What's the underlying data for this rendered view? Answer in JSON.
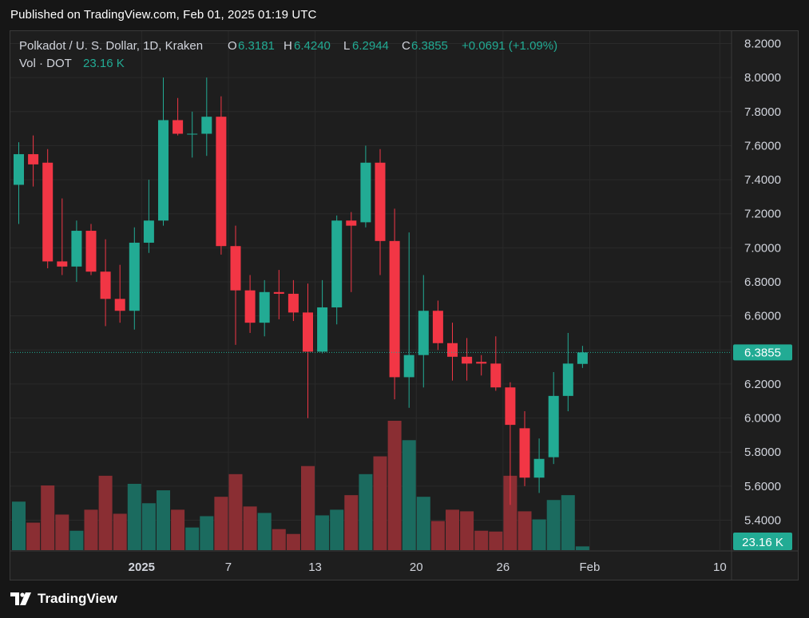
{
  "header": {
    "published": "Published on TradingView.com, Feb 01, 2025 01:19 UTC"
  },
  "legend": {
    "symbol": "Polkadot / U. S. Dollar, 1D, Kraken",
    "o_label": "O",
    "o_value": "6.3181",
    "h_label": "H",
    "h_value": "6.4240",
    "l_label": "L",
    "l_value": "6.2944",
    "c_label": "C",
    "c_value": "6.3855",
    "change": "+0.0691 (+1.09%)",
    "vol_label": "Vol · DOT",
    "vol_value": "23.16 K"
  },
  "footer": {
    "brand": "TradingView"
  },
  "colors": {
    "up": "#22ab94",
    "down": "#f23645",
    "up_vol": "#1b6b5f",
    "down_vol": "#8a2e33",
    "text": "#d1d4dc"
  },
  "chart_data": {
    "type": "candlestick",
    "y_ticks": [
      "8.2000",
      "8.0000",
      "7.8000",
      "7.6000",
      "7.4000",
      "7.2000",
      "7.0000",
      "6.8000",
      "6.6000",
      "6.4000",
      "6.2000",
      "6.0000",
      "5.8000",
      "5.6000",
      "5.4000"
    ],
    "ylim": [
      5.35,
      8.25
    ],
    "x_ticks": [
      {
        "label": "2025",
        "index": 8.5
      },
      {
        "label": "7",
        "index": 14.5
      },
      {
        "label": "13",
        "index": 20.5
      },
      {
        "label": "20",
        "index": 27.5
      },
      {
        "label": "26",
        "index": 33.5
      },
      {
        "label": "Feb",
        "index": 39.5
      },
      {
        "label": "10",
        "index": 48.5
      }
    ],
    "last_price": "6.3855",
    "last_volume": "23.16 K",
    "candles": [
      {
        "o": 7.37,
        "h": 7.62,
        "l": 7.14,
        "c": 7.55
      },
      {
        "o": 7.55,
        "h": 7.66,
        "l": 7.36,
        "c": 7.49
      },
      {
        "o": 7.5,
        "h": 7.58,
        "l": 6.88,
        "c": 6.92
      },
      {
        "o": 6.92,
        "h": 7.29,
        "l": 6.84,
        "c": 6.89
      },
      {
        "o": 6.89,
        "h": 7.16,
        "l": 6.8,
        "c": 7.1
      },
      {
        "o": 7.1,
        "h": 7.14,
        "l": 6.84,
        "c": 6.86
      },
      {
        "o": 6.86,
        "h": 7.05,
        "l": 6.54,
        "c": 6.7
      },
      {
        "o": 6.7,
        "h": 6.9,
        "l": 6.56,
        "c": 6.63
      },
      {
        "o": 6.63,
        "h": 7.12,
        "l": 6.52,
        "c": 7.03
      },
      {
        "o": 7.03,
        "h": 7.4,
        "l": 6.97,
        "c": 7.16
      },
      {
        "o": 7.16,
        "h": 8.0,
        "l": 7.13,
        "c": 7.75
      },
      {
        "o": 7.75,
        "h": 7.88,
        "l": 7.66,
        "c": 7.67
      },
      {
        "o": 7.67,
        "h": 7.8,
        "l": 7.53,
        "c": 7.67
      },
      {
        "o": 7.67,
        "h": 8.0,
        "l": 7.54,
        "c": 7.77
      },
      {
        "o": 7.77,
        "h": 7.89,
        "l": 6.96,
        "c": 7.01
      },
      {
        "o": 7.01,
        "h": 7.13,
        "l": 6.43,
        "c": 6.75
      },
      {
        "o": 6.75,
        "h": 6.84,
        "l": 6.5,
        "c": 6.56
      },
      {
        "o": 6.56,
        "h": 6.81,
        "l": 6.48,
        "c": 6.74
      },
      {
        "o": 6.74,
        "h": 6.87,
        "l": 6.58,
        "c": 6.73
      },
      {
        "o": 6.73,
        "h": 6.81,
        "l": 6.57,
        "c": 6.62
      },
      {
        "o": 6.62,
        "h": 6.79,
        "l": 6.0,
        "c": 6.39
      },
      {
        "o": 6.39,
        "h": 6.81,
        "l": 6.38,
        "c": 6.65
      },
      {
        "o": 6.65,
        "h": 7.19,
        "l": 6.55,
        "c": 7.16
      },
      {
        "o": 7.16,
        "h": 7.21,
        "l": 6.74,
        "c": 7.13
      },
      {
        "o": 7.15,
        "h": 7.6,
        "l": 7.12,
        "c": 7.5
      },
      {
        "o": 7.5,
        "h": 7.58,
        "l": 6.84,
        "c": 7.04
      },
      {
        "o": 7.04,
        "h": 7.23,
        "l": 6.11,
        "c": 6.24
      },
      {
        "o": 6.24,
        "h": 7.09,
        "l": 6.06,
        "c": 6.37
      },
      {
        "o": 6.37,
        "h": 6.84,
        "l": 6.18,
        "c": 6.63
      },
      {
        "o": 6.63,
        "h": 6.69,
        "l": 6.4,
        "c": 6.44
      },
      {
        "o": 6.44,
        "h": 6.56,
        "l": 6.22,
        "c": 6.36
      },
      {
        "o": 6.36,
        "h": 6.47,
        "l": 6.22,
        "c": 6.32
      },
      {
        "o": 6.33,
        "h": 6.37,
        "l": 6.25,
        "c": 6.32
      },
      {
        "o": 6.32,
        "h": 6.48,
        "l": 6.16,
        "c": 6.18
      },
      {
        "o": 6.18,
        "h": 6.21,
        "l": 5.49,
        "c": 5.96
      },
      {
        "o": 5.94,
        "h": 6.04,
        "l": 5.6,
        "c": 5.65
      },
      {
        "o": 5.65,
        "h": 5.88,
        "l": 5.56,
        "c": 5.76
      },
      {
        "o": 5.77,
        "h": 6.27,
        "l": 5.73,
        "c": 6.13
      },
      {
        "o": 6.13,
        "h": 6.5,
        "l": 6.04,
        "c": 6.32
      },
      {
        "o": 6.3181,
        "h": 6.424,
        "l": 6.2944,
        "c": 6.3855
      }
    ],
    "volume_scale_max": 800,
    "volumes": [
      300,
      170,
      400,
      220,
      120,
      250,
      460,
      225,
      410,
      290,
      370,
      250,
      140,
      210,
      330,
      470,
      270,
      230,
      130,
      100,
      520,
      215,
      250,
      340,
      470,
      580,
      800,
      680,
      330,
      180,
      250,
      240,
      120,
      115,
      460,
      240,
      190,
      310,
      340,
      23.16
    ]
  }
}
